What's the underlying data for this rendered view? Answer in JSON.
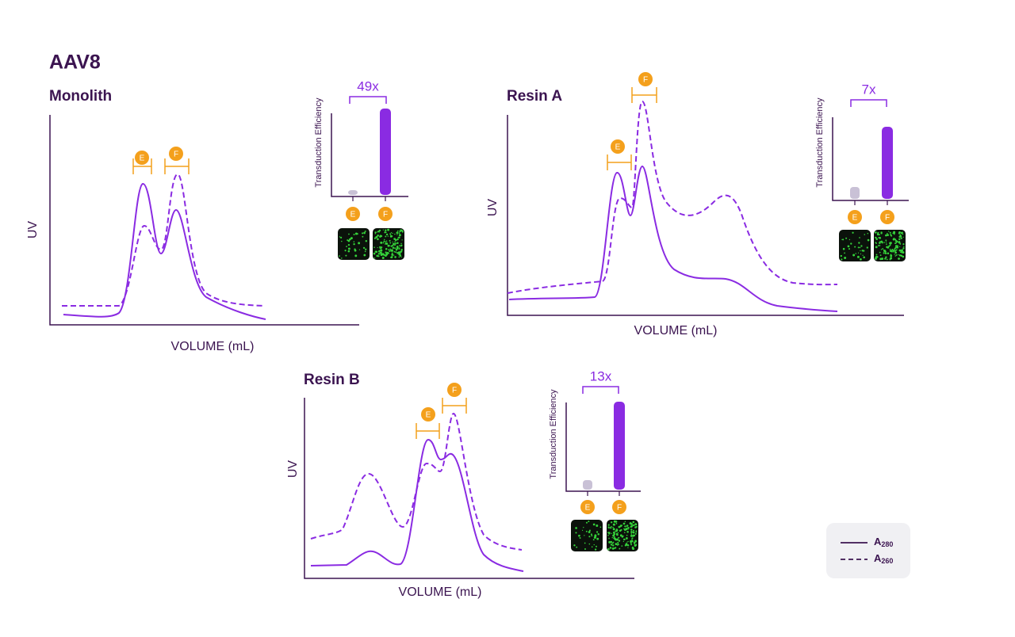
{
  "title": "AAV8",
  "panels": [
    {
      "name": "Monolith",
      "y_label": "UV",
      "x_label": "VOLUME (mL)",
      "fold_change": "49x",
      "bar_axis_label": "Transduction Efficiency",
      "peak_markers": [
        "E",
        "F"
      ],
      "bar_labels": [
        "E",
        "F"
      ]
    },
    {
      "name": "Resin A",
      "y_label": "UV",
      "x_label": "VOLUME (mL)",
      "fold_change": "7x",
      "bar_axis_label": "Transduction Efficiency",
      "peak_markers": [
        "E",
        "F"
      ],
      "bar_labels": [
        "E",
        "F"
      ]
    },
    {
      "name": "Resin B",
      "y_label": "UV",
      "x_label": "VOLUME (mL)",
      "fold_change": "13x",
      "bar_axis_label": "Transduction Efficiency",
      "peak_markers": [
        "E",
        "F"
      ],
      "bar_labels": [
        "E",
        "F"
      ]
    }
  ],
  "legend": [
    {
      "symbol": "A",
      "subscript": "280"
    },
    {
      "symbol": "A",
      "subscript": "260"
    }
  ]
}
